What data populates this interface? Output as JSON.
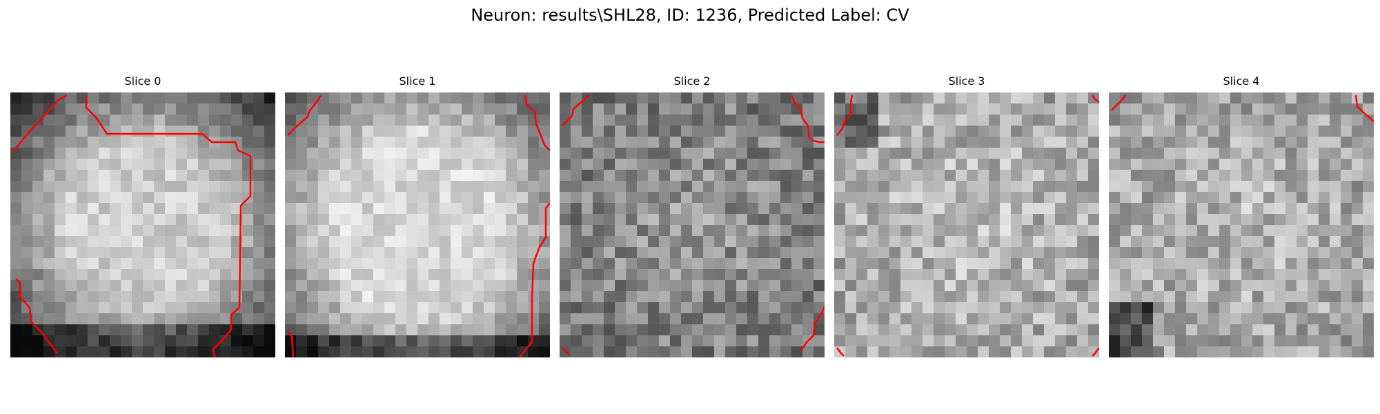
{
  "figure": {
    "title": "Neuron: results\\SHL28, ID: 1236, Predicted Label: CV"
  },
  "panels": [
    {
      "title": "Slice 0",
      "seed": 11,
      "pattern": "blob-dark-corners",
      "outline_color": "#ff0000"
    },
    {
      "title": "Slice 1",
      "seed": 23,
      "pattern": "blob-bright",
      "outline_color": "#ff0000"
    },
    {
      "title": "Slice 2",
      "seed": 37,
      "pattern": "noisy-dark",
      "outline_color": "#ff0000"
    },
    {
      "title": "Slice 3",
      "seed": 41,
      "pattern": "noisy-mid",
      "outline_color": "#ff0000"
    },
    {
      "title": "Slice 4",
      "seed": 53,
      "pattern": "noisy-mid-dark-corner",
      "outline_color": "#ff0000"
    }
  ]
}
